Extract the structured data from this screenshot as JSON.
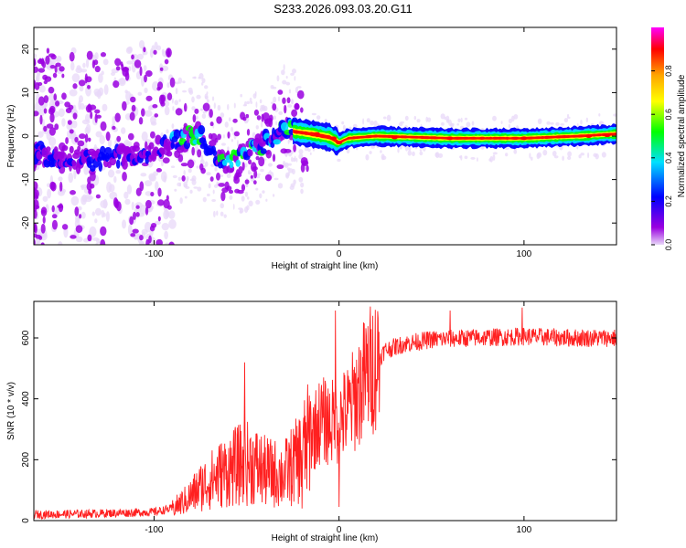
{
  "title": "S233.2026.093.03.20.G11",
  "chart_data": [
    {
      "type": "heatmap",
      "name": "spectrogram",
      "xlabel": "Height of straight line (km)",
      "ylabel": "Frequency (Hz)",
      "xlim": [
        -165,
        150
      ],
      "ylim": [
        -25,
        25
      ],
      "xticks": [
        -100,
        0,
        100
      ],
      "yticks": [
        -20,
        -10,
        0,
        10,
        20
      ],
      "colorbar": {
        "label": "Normalized spectral amplitude",
        "range": [
          0,
          1
        ],
        "ticks": [
          0.0,
          0.2,
          0.4,
          0.6,
          0.8
        ],
        "tick_labels": [
          "0.0",
          "0.2",
          "0.4",
          "0.6",
          "0.8"
        ],
        "colormap": [
          "#e8d8f8",
          "#9a00e0",
          "#0000ff",
          "#00e0ff",
          "#00ff00",
          "#ffff00",
          "#ffa500",
          "#ff0000",
          "#ff00ff"
        ]
      },
      "ridge": [
        {
          "x": -160,
          "f": -4
        },
        {
          "x": -140,
          "f": -5.5
        },
        {
          "x": -120,
          "f": -5
        },
        {
          "x": -100,
          "f": -3
        },
        {
          "x": -85,
          "f": -1
        },
        {
          "x": -75,
          "f": 1
        },
        {
          "x": -68,
          "f": -4
        },
        {
          "x": -60,
          "f": -6
        },
        {
          "x": -52,
          "f": -4
        },
        {
          "x": -45,
          "f": -3
        },
        {
          "x": -38,
          "f": -1
        },
        {
          "x": -30,
          "f": 2
        },
        {
          "x": -24,
          "f": 1
        },
        {
          "x": -15,
          "f": 0.5
        },
        {
          "x": -5,
          "f": -0.3
        },
        {
          "x": 0,
          "f": -1.5
        },
        {
          "x": 5,
          "f": -0.5
        },
        {
          "x": 20,
          "f": 0
        },
        {
          "x": 60,
          "f": -0.5
        },
        {
          "x": 100,
          "f": -0.5
        },
        {
          "x": 130,
          "f": 0
        },
        {
          "x": 150,
          "f": 0.5
        }
      ]
    },
    {
      "type": "line",
      "name": "snr",
      "xlabel": "Height of straight line (km)",
      "ylabel": "SNR (10 * v/v)",
      "xlim": [
        -165,
        150
      ],
      "ylim": [
        0,
        720
      ],
      "xticks": [
        -100,
        0,
        100
      ],
      "yticks": [
        0,
        200,
        400,
        600
      ],
      "color": "#ff2020",
      "series": [
        {
          "name": "SNR envelope",
          "points": [
            {
              "x": -165,
              "y": 20
            },
            {
              "x": -140,
              "y": 22
            },
            {
              "x": -120,
              "y": 25
            },
            {
              "x": -100,
              "y": 28
            },
            {
              "x": -90,
              "y": 40
            },
            {
              "x": -82,
              "y": 70
            },
            {
              "x": -75,
              "y": 110
            },
            {
              "x": -65,
              "y": 150
            },
            {
              "x": -55,
              "y": 180
            },
            {
              "x": -48,
              "y": 190
            },
            {
              "x": -40,
              "y": 160
            },
            {
              "x": -30,
              "y": 150
            },
            {
              "x": -22,
              "y": 200
            },
            {
              "x": -15,
              "y": 280
            },
            {
              "x": -10,
              "y": 330
            },
            {
              "x": -5,
              "y": 320
            },
            {
              "x": 0,
              "y": 330
            },
            {
              "x": 5,
              "y": 360
            },
            {
              "x": 10,
              "y": 420
            },
            {
              "x": 15,
              "y": 480
            },
            {
              "x": 20,
              "y": 520
            },
            {
              "x": 25,
              "y": 560
            },
            {
              "x": 35,
              "y": 580
            },
            {
              "x": 50,
              "y": 595
            },
            {
              "x": 70,
              "y": 600
            },
            {
              "x": 100,
              "y": 605
            },
            {
              "x": 125,
              "y": 600
            },
            {
              "x": 150,
              "y": 600
            }
          ]
        }
      ],
      "peaks": [
        {
          "x": -51,
          "y": 520
        },
        {
          "x": -2,
          "y": 690
        },
        {
          "x": 99,
          "y": 700
        },
        {
          "x": 60,
          "y": 690
        }
      ],
      "dips": [
        {
          "x": 0,
          "y": 45
        },
        {
          "x": -20,
          "y": 40
        }
      ]
    }
  ]
}
